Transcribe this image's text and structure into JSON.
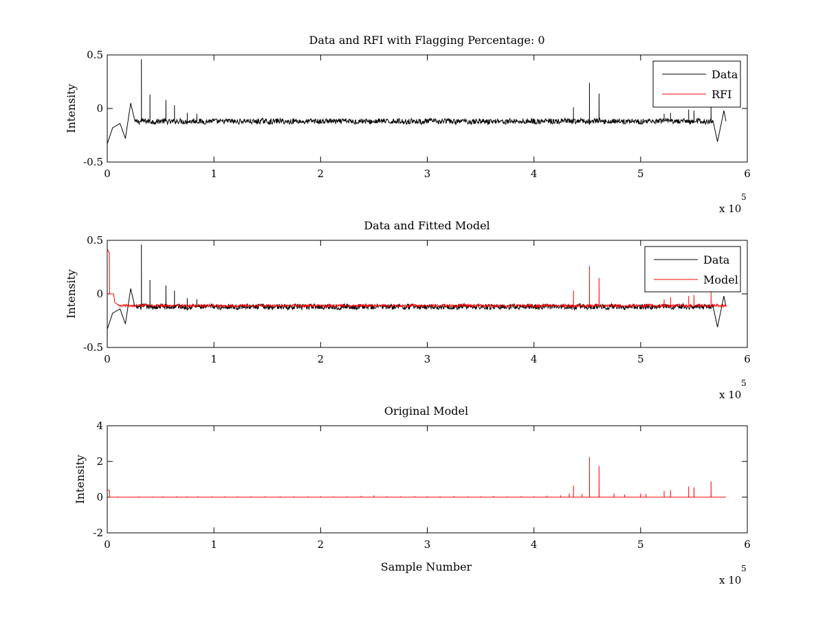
{
  "chart_data": [
    {
      "type": "line",
      "title": "Data and RFI with Flagging Percentage: 0",
      "xlabel": "",
      "ylabel": "Intensity",
      "xlim": [
        0,
        6
      ],
      "ylim": [
        -0.5,
        0.5
      ],
      "x_ticks": [
        "0",
        "1",
        "2",
        "3",
        "4",
        "5",
        "6"
      ],
      "y_ticks": [
        "0.5",
        "0",
        "-0.5"
      ],
      "x_multiplier_label": "x 10",
      "x_multiplier_exponent": "5",
      "x_unit_scale": 100000,
      "legend_position": "top-right",
      "series": [
        {
          "name": "Data",
          "color": "#000000",
          "baseline": -0.12,
          "noise": 0.025,
          "x_end": 5.8,
          "features": [
            {
              "x": 0.0,
              "y": -0.33
            },
            {
              "x": 0.05,
              "y": -0.18
            },
            {
              "x": 0.12,
              "y": -0.14
            },
            {
              "x": 0.17,
              "y": -0.28
            },
            {
              "x": 0.22,
              "y": 0.05
            },
            {
              "x": 0.26,
              "y": -0.12
            }
          ],
          "spikes": [
            {
              "x": 0.32,
              "y": 0.46
            },
            {
              "x": 0.4,
              "y": 0.13
            },
            {
              "x": 0.55,
              "y": 0.08
            },
            {
              "x": 0.63,
              "y": 0.03
            },
            {
              "x": 0.75,
              "y": -0.04
            },
            {
              "x": 0.84,
              "y": -0.05
            },
            {
              "x": 4.37,
              "y": 0.01
            },
            {
              "x": 4.52,
              "y": 0.24
            },
            {
              "x": 4.61,
              "y": 0.14
            },
            {
              "x": 5.22,
              "y": -0.05
            },
            {
              "x": 5.28,
              "y": -0.04
            },
            {
              "x": 5.45,
              "y": -0.01
            },
            {
              "x": 5.5,
              "y": -0.02
            },
            {
              "x": 5.66,
              "y": 0.01
            }
          ],
          "tail": [
            {
              "x": 5.68,
              "y": -0.12
            },
            {
              "x": 5.72,
              "y": -0.31
            },
            {
              "x": 5.76,
              "y": -0.12
            },
            {
              "x": 5.78,
              "y": -0.02
            },
            {
              "x": 5.8,
              "y": -0.12
            }
          ]
        },
        {
          "name": "RFI",
          "color": "#ff0000",
          "values": []
        }
      ]
    },
    {
      "type": "line",
      "title": "Data and Fitted Model",
      "xlabel": "",
      "ylabel": "Intensity",
      "xlim": [
        0,
        6
      ],
      "ylim": [
        -0.5,
        0.5
      ],
      "x_ticks": [
        "0",
        "1",
        "2",
        "3",
        "4",
        "5",
        "6"
      ],
      "y_ticks": [
        "0.5",
        "0",
        "-0.5"
      ],
      "x_multiplier_label": "x 10",
      "x_multiplier_exponent": "5",
      "x_unit_scale": 100000,
      "legend_position": "top-right",
      "series": [
        {
          "name": "Data",
          "color": "#000000",
          "baseline": -0.12,
          "noise": 0.025,
          "x_end": 5.8,
          "features": [
            {
              "x": 0.0,
              "y": -0.33
            },
            {
              "x": 0.05,
              "y": -0.18
            },
            {
              "x": 0.12,
              "y": -0.14
            },
            {
              "x": 0.17,
              "y": -0.28
            },
            {
              "x": 0.22,
              "y": 0.05
            },
            {
              "x": 0.26,
              "y": -0.12
            }
          ],
          "spikes": [
            {
              "x": 0.32,
              "y": 0.46
            },
            {
              "x": 0.4,
              "y": 0.13
            },
            {
              "x": 0.55,
              "y": 0.08
            },
            {
              "x": 0.63,
              "y": 0.03
            },
            {
              "x": 0.75,
              "y": -0.04
            },
            {
              "x": 0.84,
              "y": -0.05
            }
          ],
          "tail": [
            {
              "x": 5.68,
              "y": -0.12
            },
            {
              "x": 5.72,
              "y": -0.31
            },
            {
              "x": 5.76,
              "y": -0.12
            },
            {
              "x": 5.78,
              "y": -0.02
            },
            {
              "x": 5.8,
              "y": -0.12
            }
          ]
        },
        {
          "name": "Model",
          "color": "#ff0000",
          "baseline": -0.11,
          "noise": 0.012,
          "x_end": 5.8,
          "features": [
            {
              "x": 0.0,
              "y": 0.42
            },
            {
              "x": 0.02,
              "y": 0.38
            },
            {
              "x": 0.022,
              "y": 0.0
            },
            {
              "x": 0.06,
              "y": 0.0
            },
            {
              "x": 0.07,
              "y": -0.08
            },
            {
              "x": 0.1,
              "y": -0.1
            }
          ],
          "spikes": [
            {
              "x": 4.37,
              "y": 0.03
            },
            {
              "x": 4.52,
              "y": 0.26
            },
            {
              "x": 4.61,
              "y": 0.15
            },
            {
              "x": 5.22,
              "y": -0.05
            },
            {
              "x": 5.28,
              "y": -0.03
            },
            {
              "x": 5.45,
              "y": -0.02
            },
            {
              "x": 5.5,
              "y": -0.01
            },
            {
              "x": 5.66,
              "y": 0.02
            }
          ],
          "tail": [
            {
              "x": 5.8,
              "y": -0.12
            }
          ]
        }
      ]
    },
    {
      "type": "line",
      "title": "Original Model",
      "xlabel": "Sample Number",
      "ylabel": "Intensity",
      "xlim": [
        0,
        6
      ],
      "ylim": [
        -2,
        4
      ],
      "x_ticks": [
        "0",
        "1",
        "2",
        "3",
        "4",
        "5",
        "6"
      ],
      "y_ticks": [
        "4",
        "2",
        "0",
        "-2"
      ],
      "x_multiplier_label": "x 10",
      "x_multiplier_exponent": "5",
      "x_unit_scale": 100000,
      "legend_position": "none",
      "series": [
        {
          "name": "",
          "color": "#ff0000",
          "baseline": 0.0,
          "noise": 0.0,
          "x_end": 5.8,
          "features": [
            {
              "x": 0.0,
              "y": 0.4
            },
            {
              "x": 0.02,
              "y": 0.38
            },
            {
              "x": 0.022,
              "y": 0.0
            }
          ],
          "spikes": [
            {
              "x": 0.1,
              "y": 0.04
            },
            {
              "x": 0.3,
              "y": 0.05
            },
            {
              "x": 0.42,
              "y": 0.04
            },
            {
              "x": 0.52,
              "y": 0.05
            },
            {
              "x": 0.65,
              "y": 0.05
            },
            {
              "x": 0.75,
              "y": 0.05
            },
            {
              "x": 0.85,
              "y": 0.05
            },
            {
              "x": 0.98,
              "y": 0.05
            },
            {
              "x": 1.1,
              "y": 0.05
            },
            {
              "x": 1.22,
              "y": 0.05
            },
            {
              "x": 1.35,
              "y": 0.05
            },
            {
              "x": 1.48,
              "y": 0.05
            },
            {
              "x": 1.62,
              "y": 0.05
            },
            {
              "x": 1.75,
              "y": 0.05
            },
            {
              "x": 1.88,
              "y": 0.05
            },
            {
              "x": 2.0,
              "y": 0.05
            },
            {
              "x": 2.12,
              "y": 0.05
            },
            {
              "x": 2.25,
              "y": 0.05
            },
            {
              "x": 2.38,
              "y": 0.07
            },
            {
              "x": 2.5,
              "y": 0.1
            },
            {
              "x": 2.62,
              "y": 0.05
            },
            {
              "x": 2.75,
              "y": 0.05
            },
            {
              "x": 2.88,
              "y": 0.06
            },
            {
              "x": 3.0,
              "y": 0.05
            },
            {
              "x": 3.12,
              "y": 0.05
            },
            {
              "x": 3.25,
              "y": 0.06
            },
            {
              "x": 3.38,
              "y": 0.05
            },
            {
              "x": 3.5,
              "y": 0.05
            },
            {
              "x": 3.62,
              "y": 0.07
            },
            {
              "x": 3.75,
              "y": 0.05
            },
            {
              "x": 3.88,
              "y": 0.06
            },
            {
              "x": 4.0,
              "y": 0.05
            },
            {
              "x": 4.12,
              "y": 0.08
            },
            {
              "x": 4.25,
              "y": 0.1
            },
            {
              "x": 4.33,
              "y": 0.2
            },
            {
              "x": 4.37,
              "y": 0.65
            },
            {
              "x": 4.45,
              "y": 0.18
            },
            {
              "x": 4.52,
              "y": 2.25
            },
            {
              "x": 4.61,
              "y": 1.75
            },
            {
              "x": 4.75,
              "y": 0.2
            },
            {
              "x": 4.85,
              "y": 0.15
            },
            {
              "x": 5.0,
              "y": 0.2
            },
            {
              "x": 5.05,
              "y": 0.18
            },
            {
              "x": 5.22,
              "y": 0.35
            },
            {
              "x": 5.28,
              "y": 0.4
            },
            {
              "x": 5.45,
              "y": 0.6
            },
            {
              "x": 5.5,
              "y": 0.55
            },
            {
              "x": 5.66,
              "y": 0.88
            }
          ],
          "tail": [
            {
              "x": 5.8,
              "y": 0.0
            }
          ]
        }
      ]
    }
  ]
}
